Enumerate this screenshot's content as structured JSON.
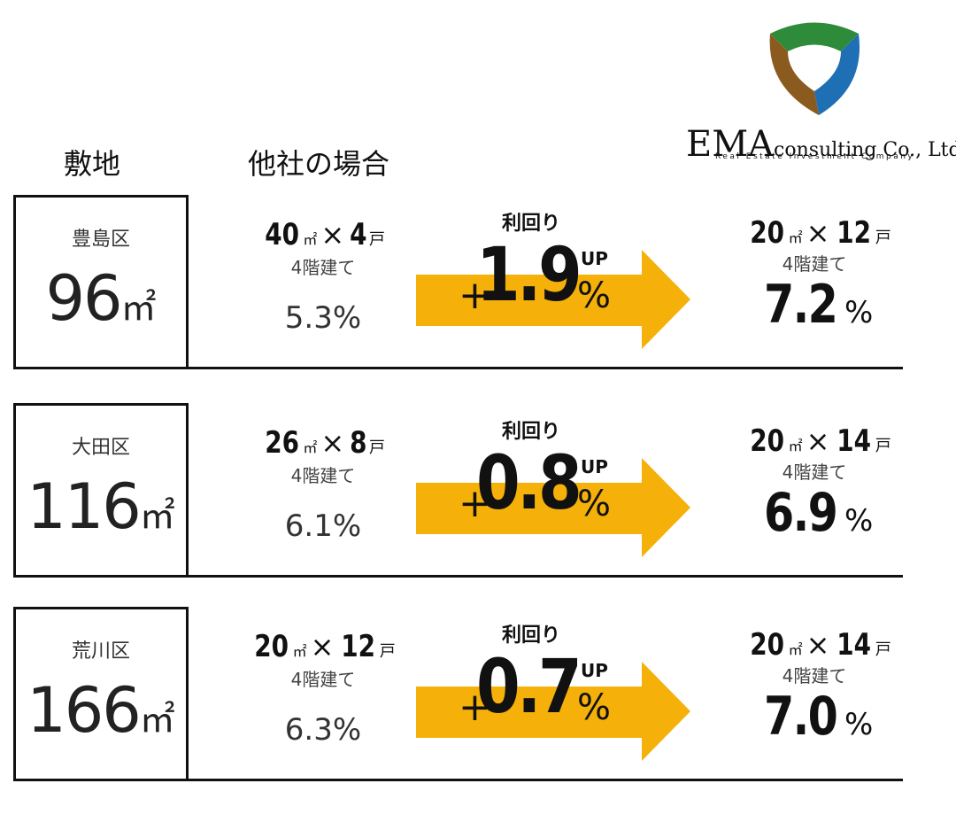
{
  "header": {
    "site_label": "敷地",
    "other_label": "他社の場合",
    "logo_name": "EMA",
    "logo_rest": "consulting Co., Ltd.",
    "logo_tagline": "Real Estate Investment Company"
  },
  "rows": [
    {
      "ward": "豊島区",
      "area": "96",
      "area_unit": "㎡",
      "other": {
        "size": "40",
        "size_unit": "㎡",
        "times": "×",
        "units": "4",
        "units_unit": "戸",
        "floors": "4階建て",
        "yield": "5.3%"
      },
      "up": {
        "label": "利回り",
        "plus": "+",
        "value": "1.9",
        "up": "UP",
        "percent": "%"
      },
      "ours": {
        "size": "20",
        "size_unit": "㎡",
        "times": "×",
        "units": "12",
        "units_unit": "戸",
        "floors": "4階建て",
        "yield": "7.2",
        "yield_unit": "%"
      }
    },
    {
      "ward": "大田区",
      "area": "116",
      "area_unit": "㎡",
      "other": {
        "size": "26",
        "size_unit": "㎡",
        "times": "×",
        "units": "8",
        "units_unit": "戸",
        "floors": "4階建て",
        "yield": "6.1%"
      },
      "up": {
        "label": "利回り",
        "plus": "+",
        "value": "0.8",
        "up": "UP",
        "percent": "%"
      },
      "ours": {
        "size": "20",
        "size_unit": "㎡",
        "times": "×",
        "units": "14",
        "units_unit": "戸",
        "floors": "4階建て",
        "yield": "6.9",
        "yield_unit": "%"
      }
    },
    {
      "ward": "荒川区",
      "area": "166",
      "area_unit": "㎡",
      "other": {
        "size": "20",
        "size_unit": "㎡",
        "times": "×",
        "units": "12",
        "units_unit": "戸",
        "floors": "4階建て",
        "yield": "6.3%"
      },
      "up": {
        "label": "利回り",
        "plus": "+",
        "value": "0.7",
        "up": "UP",
        "percent": "%"
      },
      "ours": {
        "size": "20",
        "size_unit": "㎡",
        "times": "×",
        "units": "14",
        "units_unit": "戸",
        "floors": "4階建て",
        "yield": "7.0",
        "yield_unit": "%"
      }
    }
  ]
}
